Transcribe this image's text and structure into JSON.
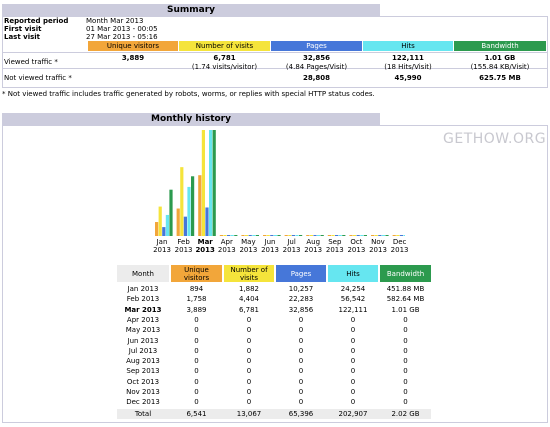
{
  "summary": {
    "title": "Summary",
    "reported_period_label": "Reported period",
    "reported_period_value": "Month Mar 2013",
    "first_visit_label": "First visit",
    "first_visit_value": "01 Mar 2013 - 00:05",
    "last_visit_label": "Last visit",
    "last_visit_value": "27 Mar 2013 - 05:16",
    "headers": [
      "Unique visitors",
      "Number of visits",
      "Pages",
      "Hits",
      "Bandwidth"
    ],
    "viewed_label": "Viewed traffic *",
    "viewed": {
      "unique": "3,889",
      "visits": "6,781",
      "visits_sub": "(1.74 visits/visitor)",
      "pages": "32,856",
      "pages_sub": "(4.84 Pages/Visit)",
      "hits": "122,111",
      "hits_sub": "(18 Hits/Visit)",
      "bandwidth": "1.01 GB",
      "bandwidth_sub": "(155.84 KB/Visit)"
    },
    "not_viewed_label": "Not viewed traffic *",
    "not_viewed": {
      "pages": "28,808",
      "hits": "45,990",
      "bandwidth": "625.75 MB"
    },
    "note": "* Not viewed traffic includes traffic generated by robots, worms, or replies with special HTTP status codes."
  },
  "monthly": {
    "title": "Monthly history",
    "watermark": "GETHOW.ORG",
    "colors": {
      "unique": "#f2a63a",
      "visits": "#f5e43b",
      "pages": "#4677d9",
      "hits": "#66e6f0",
      "bandwidth": "#2c9a4e"
    },
    "headers": [
      "Month",
      "Unique visitors",
      "Number of visits",
      "Pages",
      "Hits",
      "Bandwidth"
    ],
    "rows": [
      [
        "Jan 2013",
        "894",
        "1,882",
        "10,257",
        "24,254",
        "451.88 MB"
      ],
      [
        "Feb 2013",
        "1,758",
        "4,404",
        "22,283",
        "56,542",
        "582.64 MB"
      ],
      [
        "Mar 2013",
        "3,889",
        "6,781",
        "32,856",
        "122,111",
        "1.01 GB"
      ],
      [
        "Apr 2013",
        "0",
        "0",
        "0",
        "0",
        "0"
      ],
      [
        "May 2013",
        "0",
        "0",
        "0",
        "0",
        "0"
      ],
      [
        "Jun 2013",
        "0",
        "0",
        "0",
        "0",
        "0"
      ],
      [
        "Jul 2013",
        "0",
        "0",
        "0",
        "0",
        "0"
      ],
      [
        "Aug 2013",
        "0",
        "0",
        "0",
        "0",
        "0"
      ],
      [
        "Sep 2013",
        "0",
        "0",
        "0",
        "0",
        "0"
      ],
      [
        "Oct 2013",
        "0",
        "0",
        "0",
        "0",
        "0"
      ],
      [
        "Nov 2013",
        "0",
        "0",
        "0",
        "0",
        "0"
      ],
      [
        "Dec 2013",
        "0",
        "0",
        "0",
        "0",
        "0"
      ]
    ],
    "total": [
      "Total",
      "6,541",
      "13,067",
      "65,396",
      "202,907",
      "2.02 GB"
    ],
    "chart_labels": [
      [
        "Jan",
        "2013"
      ],
      [
        "Feb",
        "2013"
      ],
      [
        "Mar",
        "2013"
      ],
      [
        "Apr",
        "2013"
      ],
      [
        "May",
        "2013"
      ],
      [
        "Jun",
        "2013"
      ],
      [
        "Jul",
        "2013"
      ],
      [
        "Aug",
        "2013"
      ],
      [
        "Sep",
        "2013"
      ],
      [
        "Oct",
        "2013"
      ],
      [
        "Nov",
        "2013"
      ],
      [
        "Dec",
        "2013"
      ]
    ]
  },
  "chart_data": {
    "type": "bar",
    "categories": [
      "Jan 2013",
      "Feb 2013",
      "Mar 2013",
      "Apr 2013",
      "May 2013",
      "Jun 2013",
      "Jul 2013",
      "Aug 2013",
      "Sep 2013",
      "Oct 2013",
      "Nov 2013",
      "Dec 2013"
    ],
    "series": [
      {
        "name": "Unique visitors",
        "values": [
          894,
          1758,
          3889,
          0,
          0,
          0,
          0,
          0,
          0,
          0,
          0,
          0
        ]
      },
      {
        "name": "Number of visits",
        "values": [
          1882,
          4404,
          6781,
          0,
          0,
          0,
          0,
          0,
          0,
          0,
          0,
          0
        ]
      },
      {
        "name": "Pages",
        "values": [
          10257,
          22283,
          32856,
          0,
          0,
          0,
          0,
          0,
          0,
          0,
          0,
          0
        ]
      },
      {
        "name": "Hits",
        "values": [
          24254,
          56542,
          122111,
          0,
          0,
          0,
          0,
          0,
          0,
          0,
          0,
          0
        ]
      },
      {
        "name": "Bandwidth",
        "values": [
          451.88,
          582.64,
          1034.24,
          0,
          0,
          0,
          0,
          0,
          0,
          0,
          0,
          0
        ]
      }
    ]
  }
}
